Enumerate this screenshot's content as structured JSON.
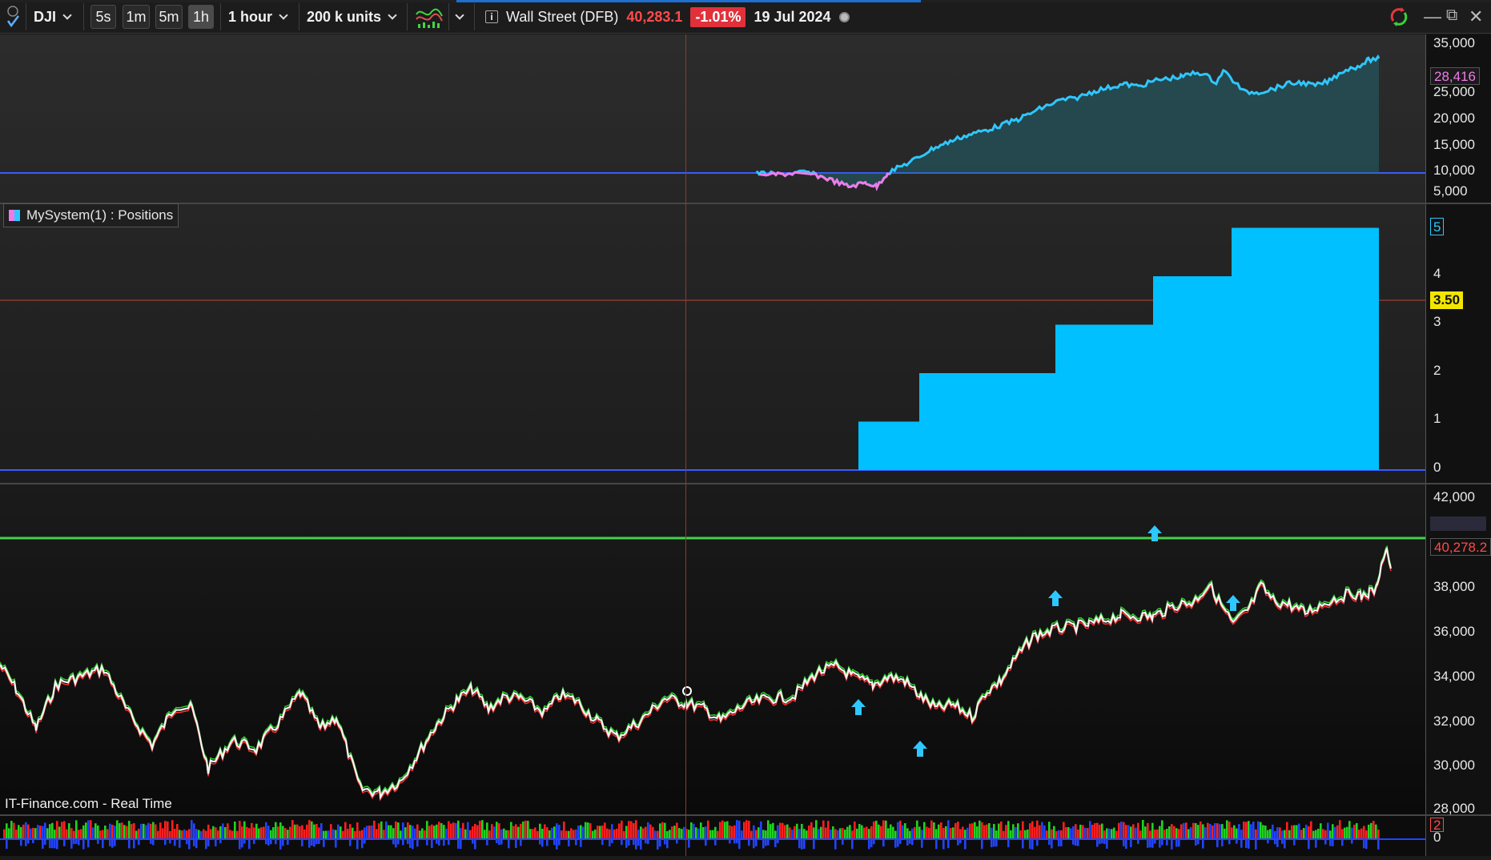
{
  "toolbar": {
    "symbol": "DJI",
    "timeframes": [
      "5s",
      "1m",
      "5m",
      "1h"
    ],
    "active_timeframe": "1h",
    "interval": "1 hour",
    "units": "200 k units",
    "instrument": "Wall Street (DFB)",
    "last_price": "40,283.1",
    "change": "-1.01%",
    "date": "19 Jul 2024"
  },
  "panel_equity": {
    "axis_ticks": [
      "35,000",
      "25,000",
      "20,000",
      "15,000",
      "10,000",
      "5,000"
    ],
    "current_label": "28,416"
  },
  "panel_positions": {
    "legend_label": "MySystem(1) : Positions",
    "axis_ticks": [
      "4",
      "3",
      "2",
      "1",
      "0"
    ],
    "top_label": "5",
    "cursor_label": "3.50",
    "steps": [
      1,
      2,
      3,
      4,
      5
    ]
  },
  "panel_price": {
    "axis_ticks": [
      "42,000",
      "38,000",
      "36,000",
      "34,000",
      "32,000",
      "30,000",
      "28,000"
    ],
    "current_price_label": "40,278.2",
    "source_label": "IT-Finance.com - Real Time"
  },
  "panel_volume": {
    "axis_ticks": [
      "2",
      "0"
    ]
  },
  "colors": {
    "up": "#2fc7ff",
    "down": "#f07ae8",
    "position_fill": "#00c0ff",
    "hline_blue": "#3a5bff",
    "hline_green": "#3fd44a",
    "cursor": "#8c3a33",
    "volume_red": "#ff1f1f",
    "volume_green": "#1fd41f",
    "volume_blue": "#2244ff"
  }
}
